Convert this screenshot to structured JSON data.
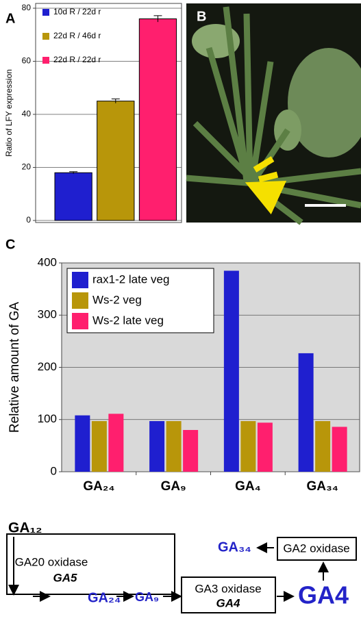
{
  "panels": {
    "a": "A",
    "b": "B",
    "c": "C"
  },
  "chart_data": [
    {
      "type": "bar",
      "ylabel": "Ratio of LFY expression",
      "categories": [
        "10d R / 22d r",
        "22d R / 46d r",
        "22d R / 22d r"
      ],
      "values": [
        18,
        45,
        76
      ],
      "errors": [
        0.4,
        0.8,
        1.2
      ],
      "colors": [
        "#1f1fcf",
        "#b8960a",
        "#ff1f6e"
      ],
      "ylim": [
        0,
        80
      ],
      "yticks": [
        0,
        20,
        40,
        60,
        80
      ],
      "grid": true,
      "legend": "upper left"
    },
    {
      "type": "grouped_bar",
      "ylabel": "Relative amount of GA",
      "categories": [
        "GA₂₄",
        "GA₉",
        "GA₄",
        "GA₃₄"
      ],
      "series": [
        {
          "name": "rax1-2 late veg",
          "color": "#1f1fcf",
          "values": [
            108,
            97,
            385,
            227
          ]
        },
        {
          "name": "Ws-2 veg",
          "color": "#b8960a",
          "values": [
            97,
            97,
            97,
            97
          ]
        },
        {
          "name": "Ws-2 late veg",
          "color": "#ff1f6e",
          "values": [
            111,
            80,
            94,
            86
          ]
        }
      ],
      "ylim": [
        0,
        400
      ],
      "yticks": [
        0,
        100,
        200,
        300,
        400
      ],
      "grid": true,
      "legend": "upper left"
    }
  ],
  "diagram": {
    "start": "GA₁₂",
    "enzyme1": "GA20 oxidase",
    "gene1": "GA5",
    "ga24": "GA₂₄",
    "ga9": "GA₉",
    "enzyme2": "GA3 oxidase",
    "gene2": "GA4",
    "product": "GA4",
    "enzyme3": "GA2 oxidase",
    "ga34": "GA₃₄"
  }
}
